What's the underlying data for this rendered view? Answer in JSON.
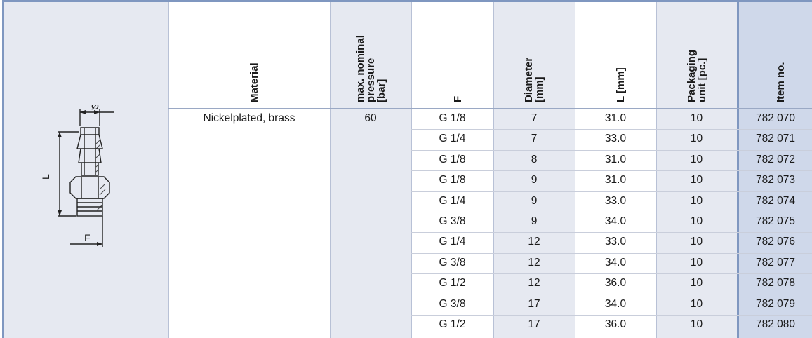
{
  "headers": {
    "material": "Material",
    "pressure": [
      "max. nominal",
      "pressure",
      "[bar]"
    ],
    "f": "F",
    "diameter": [
      "Diameter",
      "[mm]"
    ],
    "length": "L [mm]",
    "packaging": [
      "Packaging",
      "unit [pc.]"
    ],
    "item": "Item no."
  },
  "material_value": "Nickelplated, brass",
  "pressure_value": "60",
  "rows": [
    {
      "f": "G 1/8",
      "diameter": "7",
      "length": "31.0",
      "packaging": "10",
      "item": "782 070"
    },
    {
      "f": "G 1/4",
      "diameter": "7",
      "length": "33.0",
      "packaging": "10",
      "item": "782 071"
    },
    {
      "f": "G 1/8",
      "diameter": "8",
      "length": "31.0",
      "packaging": "10",
      "item": "782 072"
    },
    {
      "f": "G 1/8",
      "diameter": "9",
      "length": "31.0",
      "packaging": "10",
      "item": "782 073"
    },
    {
      "f": "G 1/4",
      "diameter": "9",
      "length": "33.0",
      "packaging": "10",
      "item": "782 074"
    },
    {
      "f": "G 3/8",
      "diameter": "9",
      "length": "34.0",
      "packaging": "10",
      "item": "782 075"
    },
    {
      "f": "G 1/4",
      "diameter": "12",
      "length": "33.0",
      "packaging": "10",
      "item": "782 076"
    },
    {
      "f": "G 3/8",
      "diameter": "12",
      "length": "34.0",
      "packaging": "10",
      "item": "782 077"
    },
    {
      "f": "G 1/2",
      "diameter": "12",
      "length": "36.0",
      "packaging": "10",
      "item": "782 078"
    },
    {
      "f": "G 3/8",
      "diameter": "17",
      "length": "34.0",
      "packaging": "10",
      "item": "782 079"
    },
    {
      "f": "G 1/2",
      "diameter": "17",
      "length": "36.0",
      "packaging": "10",
      "item": "782 080"
    }
  ],
  "diagram_labels": {
    "diameter": "Ø",
    "length": "L",
    "thread": "F"
  },
  "colors": {
    "frame": "#7f97c0",
    "shade": "#e6e9f1",
    "item_shade": "#cfd8ea"
  }
}
